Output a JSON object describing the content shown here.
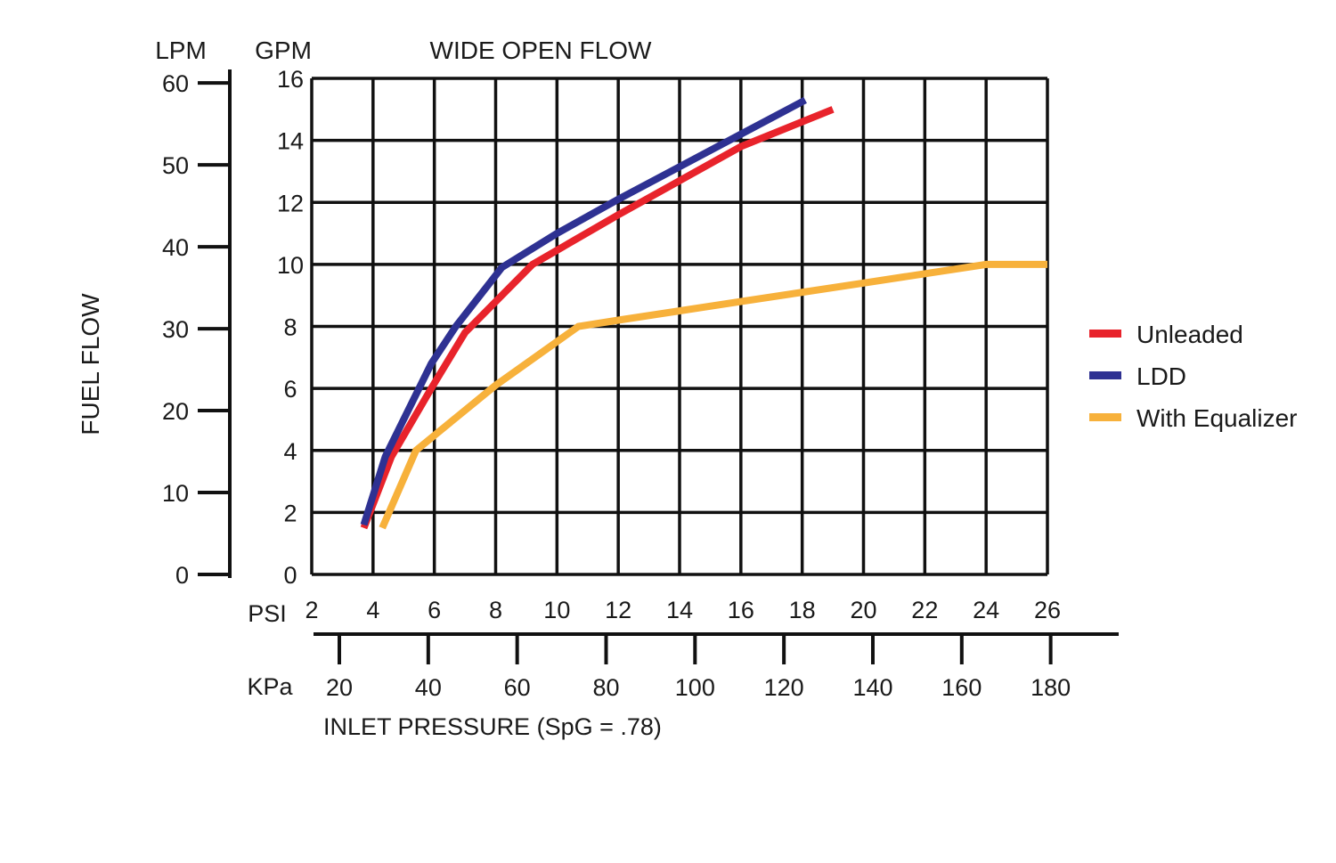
{
  "chart_data": {
    "type": "line",
    "title": "WIDE OPEN FLOW",
    "xlabel": "INLET PRESSURE (SpG = .78)",
    "ylabel": "FUEL FLOW",
    "y_unit_left": "LPM",
    "y_unit_right": "GPM",
    "x_unit_top": "PSI",
    "x_unit_bottom": "KPa",
    "xlim": [
      2,
      26
    ],
    "ylim": [
      0,
      16
    ],
    "grid": true,
    "legend_position": "right",
    "x_ticks": [
      "2",
      "4",
      "6",
      "8",
      "10",
      "12",
      "14",
      "16",
      "18",
      "20",
      "22",
      "24",
      "26"
    ],
    "y_ticks": [
      "0",
      "2",
      "4",
      "6",
      "8",
      "10",
      "12",
      "14",
      "16"
    ],
    "lpm_ticks": [
      "0",
      "10",
      "20",
      "30",
      "40",
      "50",
      "60"
    ],
    "kpa_ticks": [
      "20",
      "40",
      "60",
      "80",
      "100",
      "120",
      "140",
      "160",
      "180"
    ],
    "series": [
      {
        "name": "Unleaded",
        "color": "#e8232b",
        "points": [
          [
            3.7,
            1.5
          ],
          [
            4.6,
            3.8
          ],
          [
            5.9,
            6.0
          ],
          [
            7.0,
            7.8
          ],
          [
            9.2,
            10.0
          ],
          [
            12.0,
            11.6
          ],
          [
            16.0,
            13.8
          ],
          [
            19.0,
            15.0
          ]
        ]
      },
      {
        "name": "LDD",
        "color": "#2e3192",
        "points": [
          [
            3.7,
            1.6
          ],
          [
            4.4,
            3.8
          ],
          [
            5.9,
            6.8
          ],
          [
            6.7,
            8.0
          ],
          [
            8.2,
            9.9
          ],
          [
            10.0,
            11.0
          ],
          [
            12.0,
            12.1
          ],
          [
            16.0,
            14.2
          ],
          [
            18.1,
            15.3
          ]
        ]
      },
      {
        "name": "With Equalizer",
        "color": "#f7b13b",
        "points": [
          [
            4.3,
            1.5
          ],
          [
            5.4,
            4.0
          ],
          [
            8.0,
            6.1
          ],
          [
            10.7,
            8.0
          ],
          [
            12.0,
            8.2
          ],
          [
            16.0,
            8.8
          ],
          [
            20.0,
            9.4
          ],
          [
            24.0,
            10.0
          ],
          [
            26.0,
            10.0
          ]
        ]
      }
    ]
  }
}
